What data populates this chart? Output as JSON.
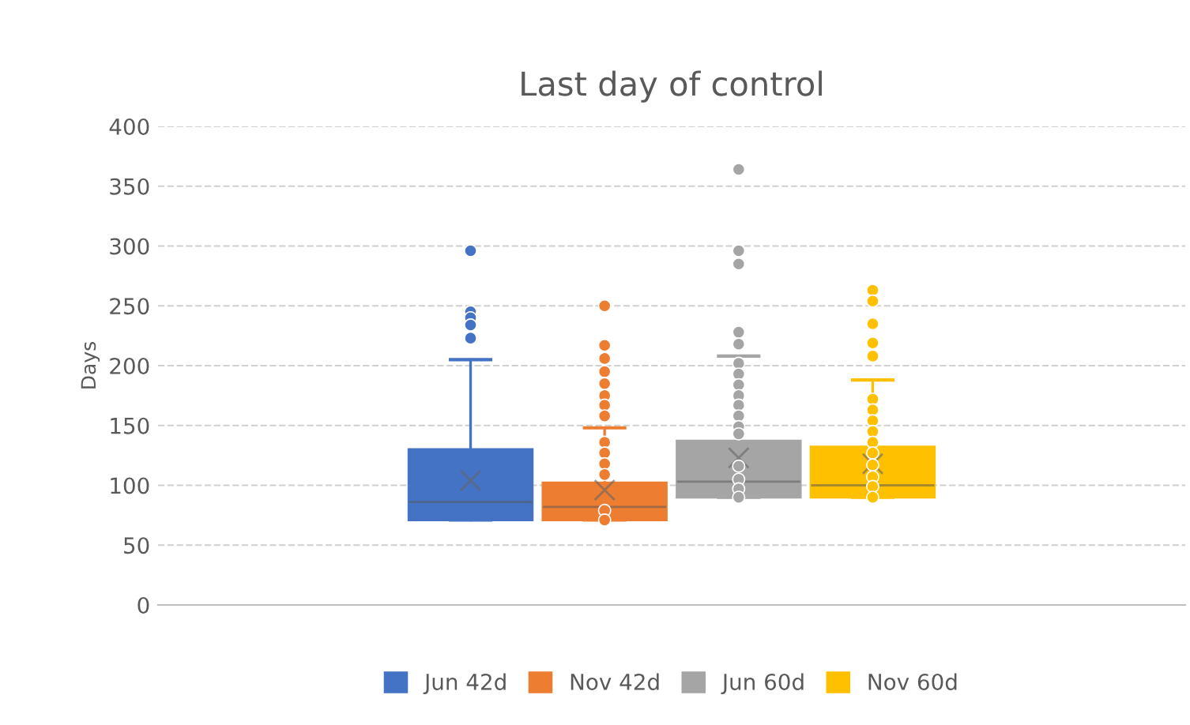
{
  "chart_data": {
    "type": "box",
    "title": "Last day of control",
    "ylabel": "Days",
    "categories": [
      null
    ],
    "ylim": [
      0,
      400
    ],
    "yticks": [
      0,
      50,
      100,
      150,
      200,
      250,
      300,
      350,
      400
    ],
    "grid": "y",
    "legend": "bottom",
    "series": [
      {
        "name": "Jun 42d",
        "color": "#4472c4",
        "boxes": [
          {
            "low": 71,
            "q1": 71,
            "median": 86,
            "q3": 130,
            "high": 205,
            "mean": 104,
            "outliers": [
              296,
              245,
              240,
              234,
              223
            ]
          }
        ]
      },
      {
        "name": "Nov 42d",
        "color": "#ed7d31",
        "boxes": [
          {
            "low": 71,
            "q1": 71,
            "median": 82,
            "q3": 102,
            "high": 148,
            "mean": 96,
            "outliers": [
              250,
              217,
              206,
              195,
              185,
              175,
              167,
              158,
              136,
              127,
              118,
              109,
              79,
              71
            ]
          }
        ]
      },
      {
        "name": "Jun 60d",
        "color": "#a5a5a5",
        "boxes": [
          {
            "low": 90,
            "q1": 90,
            "median": 103,
            "q3": 137,
            "high": 208,
            "mean": 123,
            "outliers": [
              364,
              296,
              285,
              228,
              218,
              202,
              193,
              184,
              175,
              167,
              158,
              149,
              143,
              116,
              105,
              97,
              90
            ]
          }
        ]
      },
      {
        "name": "Nov 60d",
        "color": "#ffc000",
        "boxes": [
          {
            "low": 90,
            "q1": 90,
            "median": 100,
            "q3": 132,
            "high": 188,
            "mean": 118,
            "outliers": [
              263,
              254,
              235,
              219,
              208,
              172,
              163,
              154,
              145,
              136,
              127,
              117,
              107,
              99,
              90
            ]
          }
        ]
      }
    ]
  }
}
